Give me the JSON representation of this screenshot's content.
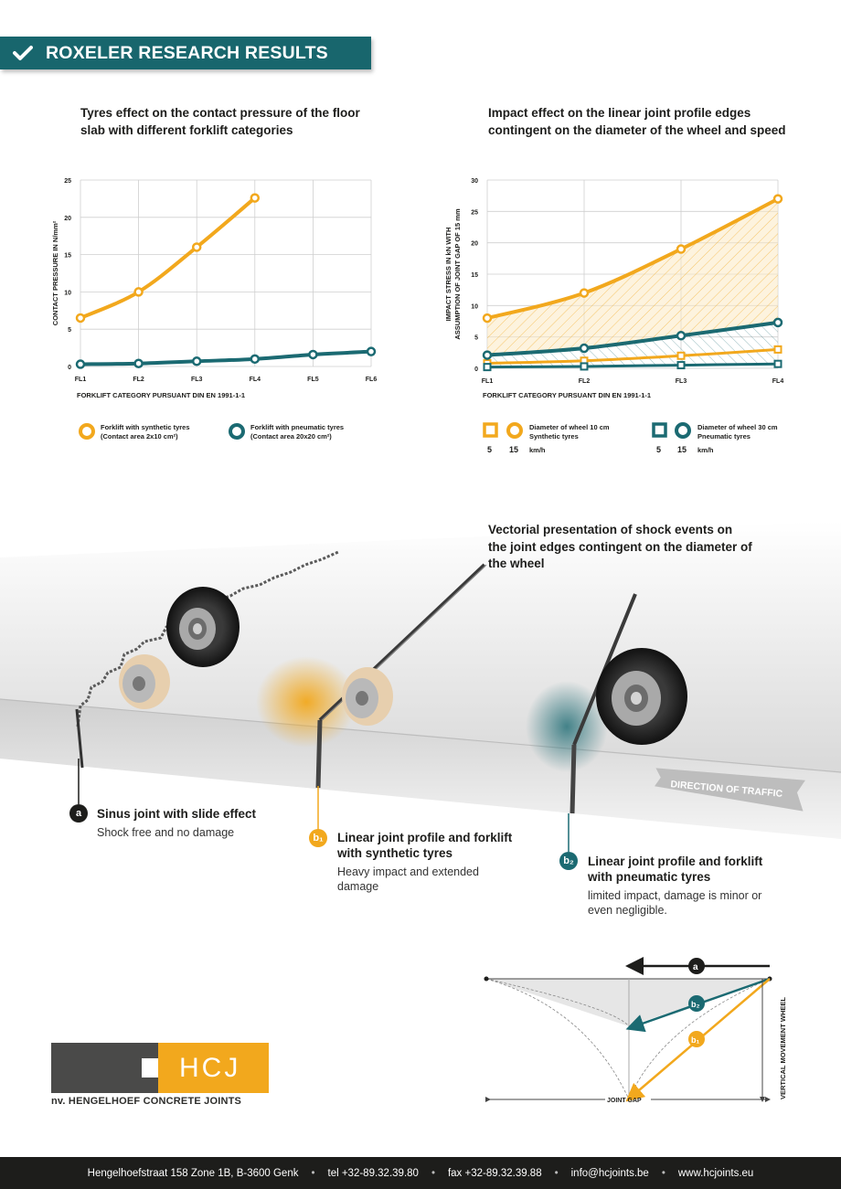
{
  "banner": {
    "title": "ROXELER RESEARCH RESULTS"
  },
  "chart1": {
    "title": "Tyres effect on the contact pressure of the floor slab with different forklift categories",
    "ylabel": "CONTACT PRESSURE IN N/mm²",
    "xlabel": "FORKLIFT CATEGORY PURSUANT DIN EN 1991-1-1",
    "legend": [
      {
        "label": "Forklift with synthetic tyres",
        "sub": "(Contact area 2x10 cm²)"
      },
      {
        "label": "Forklift with pneumatic tyres",
        "sub": "(Contact area 20x20 cm²)"
      }
    ]
  },
  "chart2": {
    "title": "Impact effect on the linear joint profile edges contingent on the diameter of the wheel and speed",
    "ylabel_line1": "IMPACT STRESS IN kN WITH",
    "ylabel_line2": "ASSUMPTION OF JOINT GAP OF 15 mm",
    "xlabel": "FORKLIFT CATEGORY PURSUANT DIN EN 1991-1-1",
    "legend": [
      {
        "label": "Diameter of wheel 10 cm",
        "sub": "Synthetic tyres",
        "speed_low": "5",
        "speed_high": "15",
        "unit": "km/h"
      },
      {
        "label": "Diameter of wheel 30 cm",
        "sub": "Pneumatic tyres",
        "speed_low": "5",
        "speed_high": "15",
        "unit": "km/h"
      }
    ]
  },
  "chart_data": [
    {
      "type": "line",
      "categories": [
        "FL1",
        "FL2",
        "FL3",
        "FL4",
        "FL5",
        "FL6"
      ],
      "ylim": [
        0,
        25
      ],
      "yticks": [
        0,
        5,
        10,
        15,
        20,
        25
      ],
      "series": [
        {
          "name": "Forklift with synthetic tyres",
          "color": "#f2a81d",
          "values": [
            6.5,
            10,
            16,
            22.6,
            null,
            null
          ]
        },
        {
          "name": "Forklift with pneumatic tyres",
          "color": "#1b6a72",
          "values": [
            0.3,
            0.4,
            0.7,
            1.0,
            1.6,
            2.0
          ]
        }
      ],
      "grid": true
    },
    {
      "type": "line",
      "categories": [
        "FL1",
        "FL2",
        "FL3",
        "FL4"
      ],
      "ylim": [
        0,
        30
      ],
      "yticks": [
        0,
        5,
        10,
        15,
        20,
        25,
        30
      ],
      "series": [
        {
          "name": "Diameter of wheel 10 cm 15 km/h",
          "color": "#f2a81d",
          "marker": "circle",
          "values": [
            8,
            12,
            19,
            27
          ]
        },
        {
          "name": "Diameter of wheel 10 cm 5 km/h",
          "color": "#f2a81d",
          "marker": "square",
          "values": [
            0.8,
            1.2,
            2.0,
            3.0
          ]
        },
        {
          "name": "Diameter of wheel 30 cm 15 km/h",
          "color": "#1b6a72",
          "marker": "circle",
          "values": [
            2.1,
            3.2,
            5.2,
            7.3
          ]
        },
        {
          "name": "Diameter of wheel 30 cm 5 km/h",
          "color": "#1b6a72",
          "marker": "square",
          "values": [
            0.2,
            0.3,
            0.5,
            0.7
          ]
        }
      ],
      "grid": true
    }
  ],
  "illustration": {
    "vectorial_title": "Vectorial presentation of shock events on the joint edges contingent on the diameter of the wheel",
    "direction_label": "DIRECTION OF TRAFFIC"
  },
  "callouts": [
    {
      "marker": "a",
      "title": "Sinus joint with slide effect",
      "desc": "Shock free and no damage",
      "color": "#1d1d1b"
    },
    {
      "marker": "b₁",
      "title": "Linear joint profile and forklift with synthetic tyres",
      "desc": "Heavy impact and extended damage",
      "color": "#f2a81d"
    },
    {
      "marker": "b₂",
      "title": "Linear joint profile and forklift with pneumatic tyres",
      "desc": "limited impact, damage is minor or even negligible.",
      "color": "#1b6a72"
    }
  ],
  "vector_diagram": {
    "label_a": "a",
    "label_b1": "b₁",
    "label_b2": "b₂",
    "joint_gap": "JOINT GAP",
    "vertical": "VERTICAL MOVEMENT WHEEL"
  },
  "logo": {
    "text": "HCJ",
    "company": "nv. HENGELHOEF CONCRETE JOINTS"
  },
  "footer": {
    "address": "Hengelhoefstraat 158 Zone 1B, B-3600 Genk",
    "tel": "tel +32-89.32.39.80",
    "fax": "fax +32-89.32.39.88",
    "email": "info@hcjoints.be",
    "web": "www.hcjoints.eu"
  },
  "colors": {
    "accent_teal": "#18666d",
    "orange": "#f2a81d",
    "dark_teal": "#1b6a72"
  }
}
